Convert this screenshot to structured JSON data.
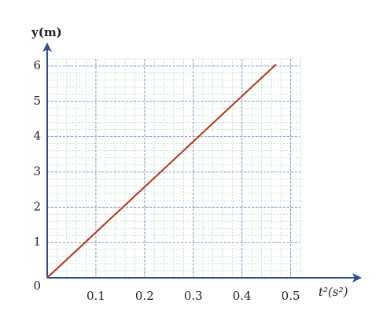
{
  "chart_data": {
    "type": "line",
    "y_label": "y(m)",
    "x_label": "t²(s²)",
    "x": [
      0,
      0.47
    ],
    "series": [
      {
        "color": "#b8321c",
        "values": [
          0,
          6.05
        ]
      }
    ],
    "xlim": [
      0,
      0.52
    ],
    "ylim": [
      0,
      6.2
    ],
    "xticks": [
      0.1,
      0.2,
      0.3,
      0.4,
      0.5
    ],
    "yticks": [
      0,
      1,
      2,
      3,
      4,
      5,
      6
    ],
    "grid": true,
    "axis_color": "#2c4f94"
  }
}
